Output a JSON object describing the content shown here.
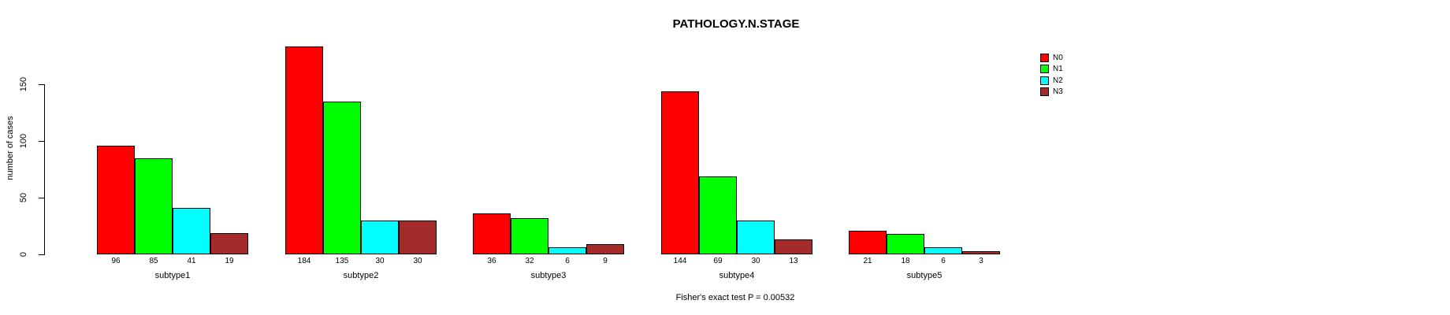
{
  "chart_data": {
    "type": "bar",
    "title": "PATHOLOGY.N.STAGE",
    "ylabel": "number of cases",
    "xlabel": "",
    "categories": [
      "subtype1",
      "subtype2",
      "subtype3",
      "subtype4",
      "subtype5"
    ],
    "series": [
      {
        "name": "N0",
        "color": "#FF0000",
        "values": [
          96,
          184,
          36,
          144,
          21
        ]
      },
      {
        "name": "N1",
        "color": "#00FF00",
        "values": [
          85,
          135,
          32,
          69,
          18
        ]
      },
      {
        "name": "N2",
        "color": "#00FFFF",
        "values": [
          41,
          30,
          6,
          30,
          6
        ]
      },
      {
        "name": "N3",
        "color": "#A52A2A",
        "values": [
          19,
          30,
          9,
          13,
          3
        ]
      }
    ],
    "bar_value_labels": [
      [
        "96",
        "85",
        "41",
        "19"
      ],
      [
        "184",
        "135",
        "30",
        "30"
      ],
      [
        "36",
        "32",
        "6",
        "9"
      ],
      [
        "144",
        "69",
        "30",
        "13"
      ],
      [
        "21",
        "18",
        "6",
        "3"
      ]
    ],
    "yticks": [
      0,
      50,
      100,
      150
    ],
    "ylim": [
      0,
      190
    ],
    "grid": false,
    "legend_position": "top-right",
    "annotation": "Fisher's exact test P = 0.00532"
  }
}
